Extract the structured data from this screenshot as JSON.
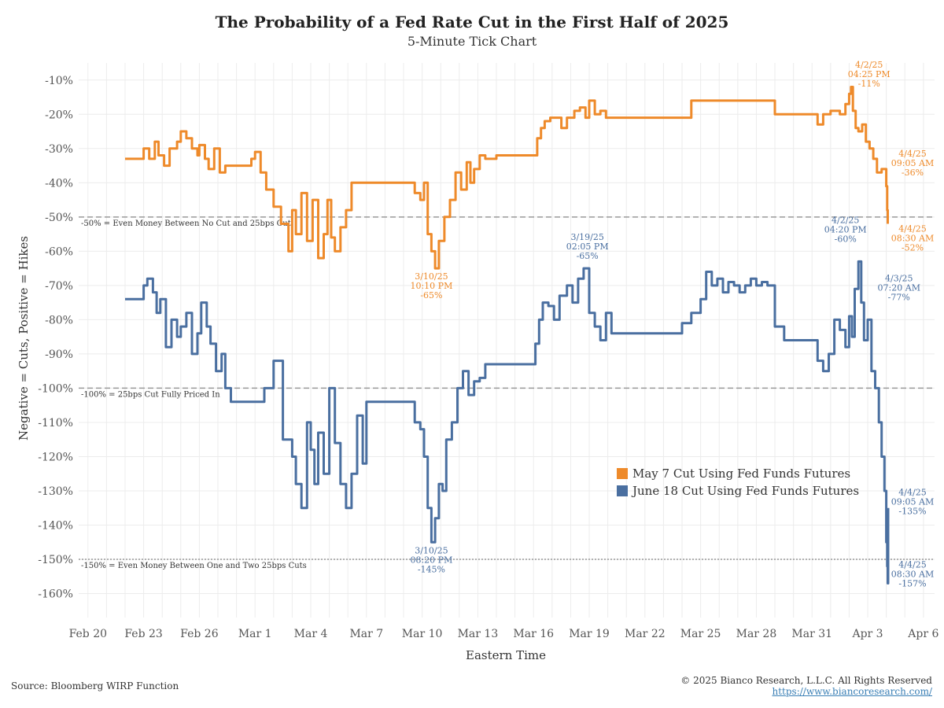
{
  "page": {
    "source": "Source: Bloomberg WIRP Function",
    "copyright": "© 2025 Bianco Research, L.L.C. All Rights Reserved",
    "link": "https://www.biancoresearch.com/"
  },
  "colors": {
    "orange": "#ee8a2a",
    "blue": "#4a6fa0",
    "refline": "#999999",
    "grid": "#ececec"
  },
  "chart_data": {
    "type": "line",
    "title": "The Probability of a Fed Rate Cut in the First Half of 2025",
    "subtitle": "5-Minute Tick Chart",
    "xlabel": "Eastern Time",
    "ylabel": "Negative = Cuts, Positive = Hikes",
    "ylim": [
      -167,
      -5
    ],
    "xlim": [
      -0.5,
      45.6
    ],
    "grid": true,
    "legend_placement": "lower-right",
    "x_tick_labels": [
      "Feb 20",
      "Feb 23",
      "Feb 26",
      "Mar 1",
      "Mar 4",
      "Mar 7",
      "Mar 10",
      "Mar 13",
      "Mar 16",
      "Mar 19",
      "Mar 22",
      "Mar 25",
      "Mar 28",
      "Mar 31",
      "Apr 3",
      "Apr 6"
    ],
    "x_tick_days": [
      0,
      3,
      6,
      9,
      12,
      15,
      18,
      21,
      24,
      27,
      30,
      33,
      36,
      39,
      42,
      45
    ],
    "y_ticks": [
      -10,
      -20,
      -30,
      -40,
      -50,
      -60,
      -70,
      -80,
      -90,
      -100,
      -110,
      -120,
      -130,
      -140,
      -150,
      -160
    ],
    "y_tick_labels": [
      "-10%",
      "-20%",
      "-30%",
      "-40%",
      "-50%",
      "-60%",
      "-70%",
      "-80%",
      "-90%",
      "-100%",
      "-110%",
      "-120%",
      "-130%",
      "-140%",
      "-150%",
      "-160%"
    ],
    "reference_lines": [
      {
        "y": -50,
        "style": "dashed",
        "label": "-50% = Even Money Between No Cut and 25bps Cut"
      },
      {
        "y": -100,
        "style": "dashed",
        "label": "-100% = 25bps Cut Fully Priced In"
      },
      {
        "y": -150,
        "style": "dotted",
        "label": "-150% = Even Money Between One and Two 25bps Cuts"
      }
    ],
    "series": [
      {
        "name": "May 7 Cut Using Fed Funds Futures",
        "color": "#ee8a2a",
        "x": [
          2.0,
          2.9,
          3.0,
          3.3,
          3.6,
          3.8,
          4.1,
          4.4,
          4.8,
          5.0,
          5.3,
          5.6,
          5.9,
          6.0,
          6.3,
          6.5,
          6.8,
          7.1,
          7.4,
          7.7,
          7.9,
          8.2,
          8.4,
          8.6,
          8.8,
          9.0,
          9.3,
          9.6,
          10.0,
          10.4,
          10.8,
          11.0,
          11.2,
          11.5,
          11.8,
          12.1,
          12.4,
          12.7,
          12.9,
          13.1,
          13.3,
          13.6,
          13.9,
          14.2,
          14.5,
          14.8,
          15.1,
          15.3,
          15.5,
          15.7,
          15.9,
          16.1,
          17.0,
          17.5,
          17.6,
          17.9,
          18.1,
          18.3,
          18.5,
          18.7,
          18.9,
          19.2,
          19.5,
          19.8,
          20.1,
          20.4,
          20.6,
          20.8,
          21.1,
          21.4,
          21.7,
          22.0,
          22.4,
          22.8,
          23.2,
          23.6,
          24.0,
          24.2,
          24.4,
          24.6,
          24.9,
          25.2,
          25.5,
          25.8,
          26.2,
          26.5,
          26.8,
          27.0,
          27.3,
          27.6,
          27.9,
          28.2,
          29.0,
          30.0,
          31.0,
          32.0,
          32.5,
          33.0,
          34.0,
          34.5,
          35.0,
          35.5,
          35.8,
          36.0,
          36.3,
          37.0,
          38.0,
          38.7,
          38.9,
          39.3,
          39.6,
          40.0,
          40.5,
          40.8,
          41.0,
          41.1,
          41.2,
          41.35,
          41.5,
          41.7,
          41.9,
          42.1,
          42.3,
          42.5,
          42.75,
          42.9,
          43.0,
          43.05,
          43.08
        ],
        "values": [
          -33,
          -33,
          -30,
          -33,
          -28,
          -32,
          -35,
          -30,
          -28,
          -25,
          -27,
          -30,
          -32,
          -29,
          -33,
          -36,
          -30,
          -37,
          -35,
          -35,
          -35,
          -35,
          -35,
          -35,
          -33,
          -31,
          -37,
          -42,
          -47,
          -52,
          -60,
          -48,
          -55,
          -43,
          -57,
          -45,
          -62,
          -55,
          -45,
          -56,
          -60,
          -53,
          -48,
          -40,
          -40,
          -40,
          -40,
          -40,
          -40,
          -40,
          -40,
          -40,
          -40,
          -40,
          -43,
          -45,
          -40,
          -55,
          -60,
          -65,
          -57,
          -50,
          -45,
          -37,
          -42,
          -34,
          -40,
          -36,
          -32,
          -33,
          -33,
          -32,
          -32,
          -32,
          -32,
          -32,
          -32,
          -27,
          -24,
          -22,
          -21,
          -21,
          -24,
          -21,
          -19,
          -18,
          -21,
          -16,
          -20,
          -19,
          -21,
          -21,
          -21,
          -21,
          -21,
          -21,
          -16,
          -16,
          -16,
          -16,
          -16,
          -16,
          -16,
          -16,
          -16,
          -20,
          -20,
          -20,
          -20,
          -23,
          -20,
          -19,
          -20,
          -17,
          -14,
          -12,
          -19,
          -24,
          -25,
          -23,
          -28,
          -30,
          -33,
          -37,
          -36,
          -36,
          -41,
          -48,
          -52
        ]
      },
      {
        "name": "June 18 Cut Using Fed Funds Futures",
        "color": "#4a6fa0",
        "x": [
          2.0,
          2.8,
          3.0,
          3.2,
          3.5,
          3.7,
          3.9,
          4.2,
          4.5,
          4.8,
          5.0,
          5.3,
          5.6,
          5.9,
          6.1,
          6.4,
          6.6,
          6.9,
          7.2,
          7.4,
          7.7,
          7.9,
          8.2,
          8.6,
          9.0,
          9.5,
          10.0,
          10.5,
          11.0,
          11.2,
          11.5,
          11.8,
          12.0,
          12.2,
          12.4,
          12.7,
          13.0,
          13.3,
          13.6,
          13.9,
          14.2,
          14.5,
          14.8,
          15.0,
          15.2,
          15.4,
          15.6,
          15.8,
          16.0,
          17.0,
          17.5,
          17.6,
          17.9,
          18.1,
          18.3,
          18.5,
          18.7,
          18.9,
          19.1,
          19.3,
          19.6,
          19.9,
          20.2,
          20.5,
          20.8,
          21.1,
          21.4,
          21.7,
          22.0,
          22.3,
          22.6,
          23.0,
          23.4,
          23.8,
          24.1,
          24.3,
          24.5,
          24.8,
          25.1,
          25.4,
          25.8,
          26.1,
          26.4,
          26.7,
          27.0,
          27.3,
          27.6,
          27.9,
          28.2,
          29.0,
          30.0,
          31.0,
          31.5,
          32.0,
          32.5,
          33.0,
          33.3,
          33.6,
          33.9,
          34.2,
          34.5,
          34.8,
          35.1,
          35.4,
          35.7,
          36.0,
          36.3,
          36.6,
          37.0,
          37.5,
          38.0,
          38.5,
          38.8,
          39.0,
          39.3,
          39.6,
          39.9,
          40.2,
          40.5,
          40.8,
          41.0,
          41.15,
          41.3,
          41.5,
          41.65,
          41.8,
          42.0,
          42.2,
          42.4,
          42.6,
          42.75,
          42.9,
          43.0,
          43.05,
          43.08,
          43.1
        ],
        "values": [
          -74,
          -74,
          -70,
          -68,
          -72,
          -78,
          -74,
          -88,
          -80,
          -85,
          -82,
          -78,
          -90,
          -84,
          -75,
          -82,
          -87,
          -95,
          -90,
          -100,
          -104,
          -104,
          -104,
          -104,
          -104,
          -100,
          -92,
          -115,
          -120,
          -128,
          -135,
          -110,
          -118,
          -128,
          -113,
          -125,
          -100,
          -116,
          -128,
          -135,
          -125,
          -108,
          -122,
          -104,
          -104,
          -104,
          -104,
          -104,
          -104,
          -104,
          -104,
          -110,
          -112,
          -120,
          -135,
          -145,
          -138,
          -128,
          -130,
          -115,
          -110,
          -100,
          -95,
          -102,
          -98,
          -97,
          -93,
          -93,
          -93,
          -93,
          -93,
          -93,
          -93,
          -93,
          -87,
          -80,
          -75,
          -76,
          -80,
          -73,
          -70,
          -75,
          -68,
          -65,
          -78,
          -82,
          -86,
          -78,
          -84,
          -84,
          -84,
          -84,
          -84,
          -81,
          -78,
          -74,
          -66,
          -70,
          -68,
          -72,
          -69,
          -70,
          -72,
          -70,
          -68,
          -70,
          -69,
          -70,
          -82,
          -86,
          -86,
          -86,
          -86,
          -86,
          -92,
          -95,
          -90,
          -80,
          -83,
          -88,
          -79,
          -85,
          -71,
          -63,
          -75,
          -86,
          -80,
          -95,
          -100,
          -110,
          -120,
          -130,
          -145,
          -152,
          -157,
          -135
        ]
      }
    ],
    "annotations": [
      {
        "series": "May 7 Cut Using Fed Funds Futures",
        "x": 18.5,
        "y": -65,
        "lines": [
          "3/10/25",
          "10:10 PM",
          "-65%"
        ]
      },
      {
        "series": "May 7 Cut Using Fed Funds Futures",
        "x": 40.8,
        "y": -11,
        "lines": [
          "4/2/25",
          "04:25 PM",
          "-11%"
        ]
      },
      {
        "series": "May 7 Cut Using Fed Funds Futures",
        "x": 43.1,
        "y": -36,
        "lines": [
          "4/4/25",
          "09:05 AM",
          "-36%"
        ]
      },
      {
        "series": "May 7 Cut Using Fed Funds Futures",
        "x": 43.1,
        "y": -52,
        "lines": [
          "4/4/25",
          "08:30 AM",
          "-52%"
        ]
      },
      {
        "series": "June 18 Cut Using Fed Funds Futures",
        "x": 18.5,
        "y": -145,
        "lines": [
          "3/10/25",
          "08:20 PM",
          "-145%"
        ]
      },
      {
        "series": "June 18 Cut Using Fed Funds Futures",
        "x": 26.9,
        "y": -65,
        "lines": [
          "3/19/25",
          "02:05 PM",
          "-65%"
        ]
      },
      {
        "series": "June 18 Cut Using Fed Funds Futures",
        "x": 40.8,
        "y": -60,
        "lines": [
          "4/2/25",
          "04:20 PM",
          "-60%"
        ]
      },
      {
        "series": "June 18 Cut Using Fed Funds Futures",
        "x": 42.2,
        "y": -77,
        "lines": [
          "4/3/25",
          "07:20 AM",
          "-77%"
        ]
      },
      {
        "series": "June 18 Cut Using Fed Funds Futures",
        "x": 43.1,
        "y": -135,
        "lines": [
          "4/4/25",
          "09:05 AM",
          "-135%"
        ]
      },
      {
        "series": "June 18 Cut Using Fed Funds Futures",
        "x": 43.1,
        "y": -157,
        "lines": [
          "4/4/25",
          "08:30 AM",
          "-157%"
        ]
      }
    ]
  }
}
